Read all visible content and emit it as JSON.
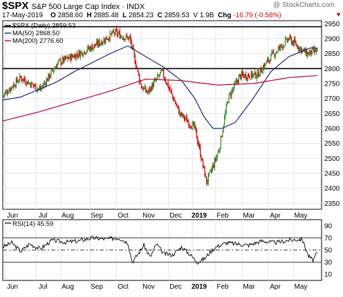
{
  "header": {
    "symbol": "$SPX",
    "name": "S&P 500 Large Cap Index",
    "exchange": "INDX",
    "date": "17-May-2019",
    "open_label": "O",
    "open": "2858.60",
    "high_label": "H",
    "high": "2885.48",
    "low_label": "L",
    "low": "2854.23",
    "close_label": "C",
    "close": "2859.53",
    "volume": "V 1.9B",
    "chg_label": "Chg",
    "chg": "-16.79 (-0.58%)",
    "watermark": "@ StockCharts.com",
    "dropdown_icon": "triangle-down"
  },
  "legend": {
    "price": "$SPX (Daily) 2859.53",
    "ma50": "MA(50) 2868.50",
    "ma200": "MA(200) 2776.60",
    "rsi": "RSI(14) 45.59"
  },
  "colors": {
    "up": "#2e8b2e",
    "down": "#d40000",
    "ma50": "#1a237e",
    "ma200": "#b2002a",
    "chg": "#cc0000"
  },
  "chart_data": [
    {
      "type": "candlestick",
      "title": "$SPX (Daily) 2859.53",
      "x_labels": [
        "Jun",
        "Jul",
        "Aug",
        "Sep",
        "Oct",
        "Nov",
        "Dec",
        "2019",
        "Feb",
        "Mar",
        "Apr",
        "May"
      ],
      "y_ticks": [
        2350,
        2400,
        2450,
        2500,
        2550,
        2600,
        2650,
        2700,
        2750,
        2800,
        2850,
        2900,
        2950
      ],
      "ylim": [
        2330,
        2960
      ],
      "horizontal_lines": [
        2940,
        2800
      ],
      "grid": true,
      "legend_position": "top-left",
      "series": [
        {
          "name": "$SPX (Daily)",
          "x": [
            0,
            20,
            42,
            62,
            85,
            105,
            125,
            142,
            155,
            162,
            178,
            198,
            215,
            228,
            236,
            242,
            252,
            265,
            285,
            300,
            320,
            340,
            352
          ],
          "close": [
            2710,
            2770,
            2730,
            2820,
            2850,
            2880,
            2920,
            2900,
            2740,
            2720,
            2790,
            2650,
            2600,
            2420,
            2480,
            2530,
            2700,
            2775,
            2780,
            2840,
            2900,
            2850,
            2859.53
          ]
        },
        {
          "name": "MA(50)",
          "x": [
            0,
            20,
            40,
            60,
            80,
            100,
            120,
            140,
            160,
            180,
            200,
            215,
            225,
            235,
            245,
            260,
            280,
            300,
            320,
            345,
            352
          ],
          "values": [
            2695,
            2705,
            2730,
            2755,
            2790,
            2820,
            2850,
            2876,
            2840,
            2805,
            2760,
            2700,
            2640,
            2600,
            2600,
            2620,
            2700,
            2790,
            2840,
            2870,
            2868.5
          ]
        },
        {
          "name": "MA(200)",
          "x": [
            0,
            40,
            80,
            120,
            160,
            200,
            240,
            280,
            320,
            352
          ],
          "values": [
            2625,
            2655,
            2690,
            2725,
            2765,
            2760,
            2745,
            2750,
            2770,
            2776.6
          ]
        }
      ]
    },
    {
      "type": "line",
      "title": "RSI(14) 45.59",
      "y_ticks": [
        10,
        30,
        50,
        70,
        90
      ],
      "ylim": [
        0,
        100
      ],
      "horizontal_lines": [
        70,
        50,
        30
      ],
      "x_labels": [
        "Jun",
        "Jul",
        "Aug",
        "Sep",
        "Oct",
        "Nov",
        "Dec",
        "2019",
        "Feb",
        "Mar",
        "Apr",
        "May"
      ],
      "series": [
        {
          "name": "RSI(14)",
          "x": [
            0,
            10,
            20,
            30,
            42,
            55,
            70,
            85,
            100,
            115,
            130,
            140,
            145,
            152,
            158,
            165,
            172,
            180,
            190,
            200,
            210,
            218,
            226,
            234,
            240,
            250,
            262,
            275,
            290,
            305,
            320,
            335,
            342,
            347,
            352
          ],
          "values": [
            55,
            62,
            48,
            60,
            52,
            66,
            63,
            65,
            70,
            68,
            70,
            62,
            30,
            45,
            58,
            38,
            60,
            44,
            42,
            55,
            42,
            30,
            36,
            50,
            56,
            62,
            60,
            58,
            65,
            62,
            66,
            68,
            40,
            33,
            45.59
          ]
        }
      ]
    }
  ]
}
